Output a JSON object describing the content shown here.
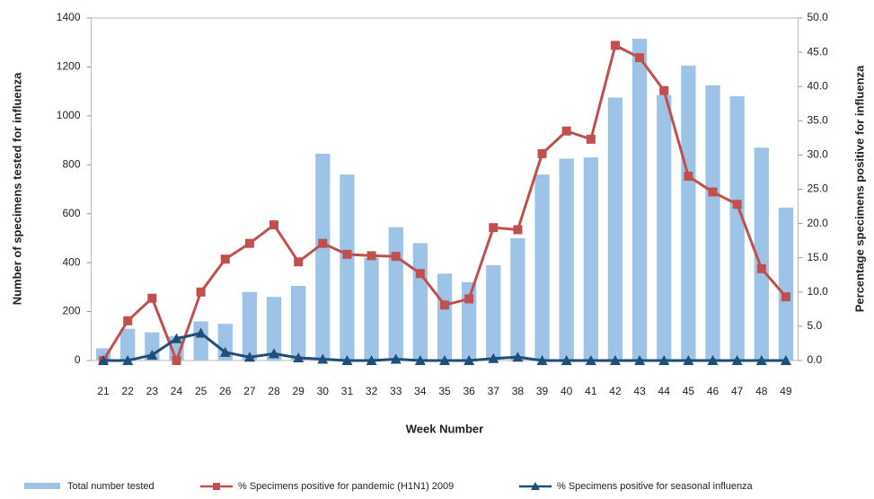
{
  "chart_data": {
    "type": "bar-line",
    "y_label": "Number of specimens tested for influenza",
    "y2_label": "Percentage specimens positive for influenza",
    "x_label": "Week Number",
    "categories": [
      "21",
      "22",
      "23",
      "24",
      "25",
      "26",
      "27",
      "28",
      "29",
      "30",
      "31",
      "32",
      "33",
      "34",
      "35",
      "36",
      "37",
      "38",
      "39",
      "40",
      "41",
      "42",
      "43",
      "44",
      "45",
      "46",
      "47",
      "48",
      "49"
    ],
    "series": [
      {
        "name": "Total number tested",
        "color": "#9dc3e6",
        "kind": "bar",
        "values": [
          50,
          130,
          115,
          100,
          160,
          150,
          280,
          260,
          305,
          845,
          760,
          420,
          545,
          480,
          355,
          320,
          390,
          500,
          760,
          825,
          830,
          1075,
          1315,
          1085,
          1205,
          1125,
          1080,
          870,
          625
        ]
      },
      {
        "name": "% Specimens positive for pandemic (H1N1) 2009",
        "color": "#c0504d",
        "kind": "line",
        "marker": "square",
        "axis": "y2",
        "values": [
          0,
          5.8,
          9.1,
          0,
          10,
          14.8,
          17.1,
          19.8,
          14.4,
          17.1,
          15.5,
          15.3,
          15.2,
          12.7,
          8.1,
          9,
          19.4,
          19.1,
          30.2,
          33.5,
          32.3,
          46,
          44.2,
          39.4,
          26.9,
          24.6,
          22.8,
          13.4,
          9.3
        ]
      },
      {
        "name": "% Specimens positive for seasonal influenza",
        "color": "#1f4e79",
        "kind": "line",
        "marker": "triangle",
        "axis": "y2",
        "values": [
          0,
          0,
          0.8,
          3.2,
          4,
          1.2,
          0.5,
          1,
          0.4,
          0.2,
          0,
          0,
          0.2,
          0,
          0,
          0,
          0.3,
          0.5,
          0,
          0,
          0,
          0,
          0,
          0,
          0,
          0,
          0,
          0,
          0
        ]
      }
    ],
    "ylim": [
      0,
      1400
    ],
    "yticks": [
      0,
      200,
      400,
      600,
      800,
      1000,
      1200,
      1400
    ],
    "y2lim": [
      0,
      50
    ],
    "y2ticks": [
      {
        "value": 0,
        "label": "0.0"
      },
      {
        "value": 5,
        "label": "5.0"
      },
      {
        "value": 10,
        "label": "10.0"
      },
      {
        "value": 15,
        "label": "15.0"
      },
      {
        "value": 20,
        "label": "20.0"
      },
      {
        "value": 25,
        "label": "25.0"
      },
      {
        "value": 30,
        "label": "30.0"
      },
      {
        "value": 35,
        "label": "35.0"
      },
      {
        "value": 40,
        "label": "40.0"
      },
      {
        "value": 45,
        "label": "45.0"
      },
      {
        "value": 50,
        "label": "50.0"
      }
    ],
    "grid": false,
    "legend": "bottom"
  }
}
